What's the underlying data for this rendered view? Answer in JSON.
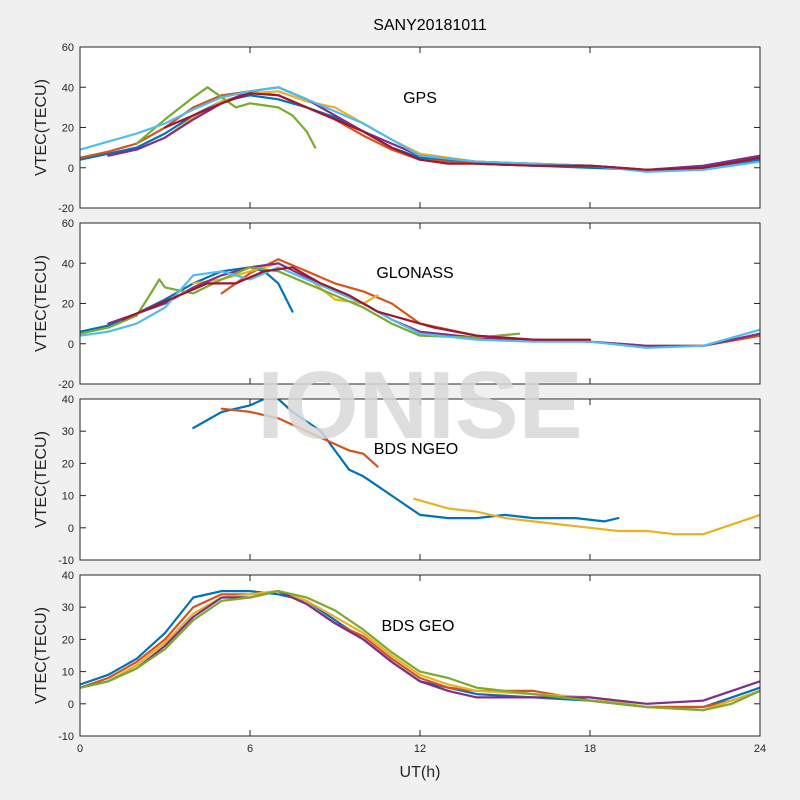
{
  "title": "SANY20181011",
  "xlabel": "UT(h)",
  "ylabel": "VTEC(TECU)",
  "watermark": "IONISE",
  "xlim": [
    0,
    24
  ],
  "xticks": [
    0,
    6,
    12,
    18,
    24
  ],
  "colors": [
    "#0072bd",
    "#d95319",
    "#edb120",
    "#7e2f8e",
    "#77ac30",
    "#4dbeee",
    "#a2142f"
  ],
  "chart_data": [
    {
      "type": "line",
      "label": "GPS",
      "ylim": [
        -20,
        60
      ],
      "yticks": [
        -20,
        0,
        20,
        40,
        60
      ],
      "series": [
        {
          "x": [
            0,
            1,
            2,
            3,
            4,
            5,
            6,
            7,
            8,
            9,
            10,
            11,
            12,
            14,
            16,
            18,
            20,
            22,
            24
          ],
          "y": [
            4,
            7,
            10,
            17,
            26,
            33,
            36,
            34,
            30,
            25,
            18,
            10,
            5,
            2,
            1,
            0,
            -1,
            0,
            4
          ]
        },
        {
          "x": [
            0,
            1,
            2,
            3,
            4,
            5,
            6,
            7,
            8,
            9,
            10,
            11,
            12,
            14,
            16,
            18,
            20,
            22,
            24
          ],
          "y": [
            5,
            8,
            12,
            20,
            30,
            36,
            38,
            36,
            30,
            24,
            16,
            9,
            4,
            2,
            1,
            1,
            -1,
            0,
            5
          ]
        },
        {
          "x": [
            3,
            4,
            5,
            6,
            7,
            8,
            9,
            10,
            11,
            12,
            14,
            16,
            18
          ],
          "y": [
            15,
            25,
            33,
            37,
            38,
            33,
            30,
            22,
            14,
            7,
            3,
            2,
            1
          ]
        },
        {
          "x": [
            1,
            2,
            3,
            4,
            5,
            6,
            7,
            8,
            9,
            10,
            11,
            12,
            14,
            16,
            18,
            20,
            22,
            24
          ],
          "y": [
            6,
            9,
            15,
            24,
            32,
            38,
            40,
            34,
            26,
            18,
            12,
            6,
            3,
            2,
            1,
            -1,
            1,
            6
          ]
        },
        {
          "x": [
            2,
            3,
            4,
            4.5,
            5,
            5.5,
            6,
            7,
            7.5,
            8,
            8.3
          ],
          "y": [
            12,
            24,
            35,
            40,
            35,
            30,
            32,
            30,
            26,
            18,
            10
          ]
        },
        {
          "x": [
            0,
            1,
            2,
            3,
            4,
            5,
            6,
            7,
            8,
            9,
            10,
            11,
            12,
            14,
            16,
            18,
            20,
            22,
            24
          ],
          "y": [
            9,
            13,
            17,
            22,
            29,
            35,
            38,
            40,
            34,
            28,
            22,
            14,
            6,
            3,
            2,
            1,
            -2,
            -1,
            3
          ]
        },
        {
          "x": [
            3,
            4,
            5,
            6,
            7,
            8,
            9,
            10,
            11,
            12,
            13,
            14,
            16,
            18,
            20,
            22,
            24
          ],
          "y": [
            20,
            26,
            32,
            37,
            36,
            30,
            24,
            18,
            10,
            4,
            2,
            2,
            1,
            1,
            -1,
            0,
            5
          ]
        }
      ]
    },
    {
      "type": "line",
      "label": "GLONASS",
      "ylim": [
        -20,
        60
      ],
      "yticks": [
        -20,
        0,
        20,
        40,
        60
      ],
      "series": [
        {
          "x": [
            0,
            1,
            2,
            3,
            4,
            5,
            6,
            6.5,
            7,
            7.5
          ],
          "y": [
            6,
            9,
            15,
            22,
            30,
            36,
            38,
            36,
            30,
            16
          ]
        },
        {
          "x": [
            5,
            6,
            7,
            8,
            9,
            10,
            11,
            12,
            14,
            16,
            18,
            20,
            22,
            24
          ],
          "y": [
            25,
            35,
            42,
            36,
            30,
            26,
            20,
            10,
            4,
            2,
            1,
            -1,
            -1,
            4
          ]
        },
        {
          "x": [
            4,
            5,
            6,
            7,
            8,
            9,
            10,
            10.5
          ],
          "y": [
            30,
            32,
            36,
            40,
            33,
            22,
            20,
            24
          ]
        },
        {
          "x": [
            1,
            2,
            3,
            4,
            5,
            6,
            7,
            8,
            9,
            10,
            11,
            12,
            14,
            16,
            18,
            20,
            22,
            24
          ],
          "y": [
            10,
            15,
            20,
            28,
            34,
            38,
            40,
            33,
            26,
            20,
            12,
            6,
            3,
            2,
            1,
            -1,
            -1,
            5
          ]
        },
        {
          "x": [
            0,
            1,
            2,
            2.5,
            2.8,
            3,
            4,
            5,
            6,
            7,
            8,
            9,
            10,
            11,
            12,
            14,
            15.5
          ],
          "y": [
            5,
            8,
            14,
            25,
            32,
            28,
            25,
            32,
            38,
            36,
            30,
            24,
            18,
            10,
            4,
            3,
            5
          ]
        },
        {
          "x": [
            0,
            1,
            2,
            3,
            4,
            5,
            6,
            7,
            8,
            9,
            10,
            11,
            12,
            14,
            16,
            18,
            20,
            22,
            24
          ],
          "y": [
            4,
            6,
            10,
            18,
            34,
            36,
            32,
            38,
            32,
            26,
            20,
            12,
            5,
            2,
            1,
            1,
            -2,
            -1,
            7
          ]
        },
        {
          "x": [
            1.5,
            2.5,
            3.5,
            4.5,
            5.5,
            6.5,
            7.5,
            8.5,
            9.5,
            10.5,
            11.5,
            12.5,
            14,
            16,
            18
          ],
          "y": [
            12,
            18,
            24,
            30,
            30,
            36,
            38,
            30,
            24,
            16,
            12,
            8,
            4,
            2,
            2
          ]
        }
      ]
    },
    {
      "type": "line",
      "label": "BDS NGEO",
      "ylim": [
        -10,
        40
      ],
      "yticks": [
        -10,
        0,
        10,
        20,
        30,
        40
      ],
      "series": [
        {
          "x": [
            4,
            5,
            6,
            6.5,
            7,
            7.5,
            8,
            8.5,
            9,
            9.5,
            10,
            11,
            12,
            13,
            14,
            15,
            16,
            17,
            17.5,
            18.5,
            19
          ],
          "y": [
            31,
            36,
            38,
            40,
            40,
            36,
            33,
            30,
            24,
            18,
            16,
            10,
            4,
            3,
            3,
            4,
            3,
            3,
            3,
            2,
            3
          ]
        },
        {
          "x": [
            5,
            6,
            7,
            8,
            9,
            9.5,
            10,
            10.5
          ],
          "y": [
            37,
            36,
            34,
            30,
            26,
            24,
            23,
            19
          ]
        },
        {
          "x": [
            11.8,
            13,
            14,
            15,
            16,
            17,
            18,
            19,
            20,
            21,
            22,
            23,
            24
          ],
          "y": [
            9,
            6,
            5,
            3,
            2,
            1,
            0,
            -1,
            -1,
            -2,
            -2,
            1,
            4
          ]
        }
      ]
    },
    {
      "type": "line",
      "label": "BDS GEO",
      "ylim": [
        -10,
        40
      ],
      "yticks": [
        -10,
        0,
        10,
        20,
        30,
        40
      ],
      "series": [
        {
          "x": [
            0,
            1,
            2,
            3,
            4,
            5,
            6,
            7,
            8,
            9,
            10,
            11,
            12,
            13,
            14,
            16,
            18,
            20,
            22,
            23,
            24
          ],
          "y": [
            6,
            9,
            14,
            22,
            33,
            35,
            35,
            34,
            32,
            26,
            20,
            13,
            7,
            5,
            3,
            2,
            1,
            -1,
            -1,
            2,
            5
          ]
        },
        {
          "x": [
            0,
            1,
            2,
            3,
            4,
            5,
            6,
            7,
            8,
            9,
            10,
            11,
            12,
            13,
            14,
            16,
            18,
            20,
            22,
            23,
            24
          ],
          "y": [
            5,
            8,
            13,
            20,
            30,
            34,
            34,
            35,
            31,
            25,
            21,
            14,
            8,
            5,
            4,
            4,
            1,
            -1,
            -1,
            1,
            4
          ]
        },
        {
          "x": [
            0,
            1,
            2,
            3,
            4,
            5,
            6,
            7,
            8,
            9,
            10,
            11,
            12,
            13,
            14,
            16,
            18,
            20,
            22,
            23,
            24
          ],
          "y": [
            5,
            7,
            12,
            19,
            28,
            33,
            34,
            35,
            32,
            27,
            22,
            15,
            9,
            6,
            4,
            3,
            2,
            -1,
            -2,
            1,
            4
          ]
        },
        {
          "x": [
            0,
            1,
            2,
            3,
            4,
            5,
            6,
            7,
            8,
            9,
            10,
            11,
            12,
            13,
            14,
            16,
            18,
            20,
            22,
            23,
            24
          ],
          "y": [
            5,
            7,
            11,
            18,
            27,
            33,
            33,
            35,
            31,
            25,
            20,
            13,
            7,
            4,
            2,
            2,
            2,
            0,
            1,
            4,
            7
          ]
        },
        {
          "x": [
            0,
            1,
            2,
            3,
            4,
            5,
            6,
            7,
            8,
            9,
            10,
            11,
            12,
            13,
            14,
            16,
            18,
            20,
            22,
            23,
            24
          ],
          "y": [
            5,
            7,
            11,
            17,
            26,
            32,
            33,
            35,
            33,
            29,
            23,
            16,
            10,
            8,
            5,
            3,
            1,
            -1,
            -2,
            0,
            4
          ]
        }
      ]
    }
  ]
}
